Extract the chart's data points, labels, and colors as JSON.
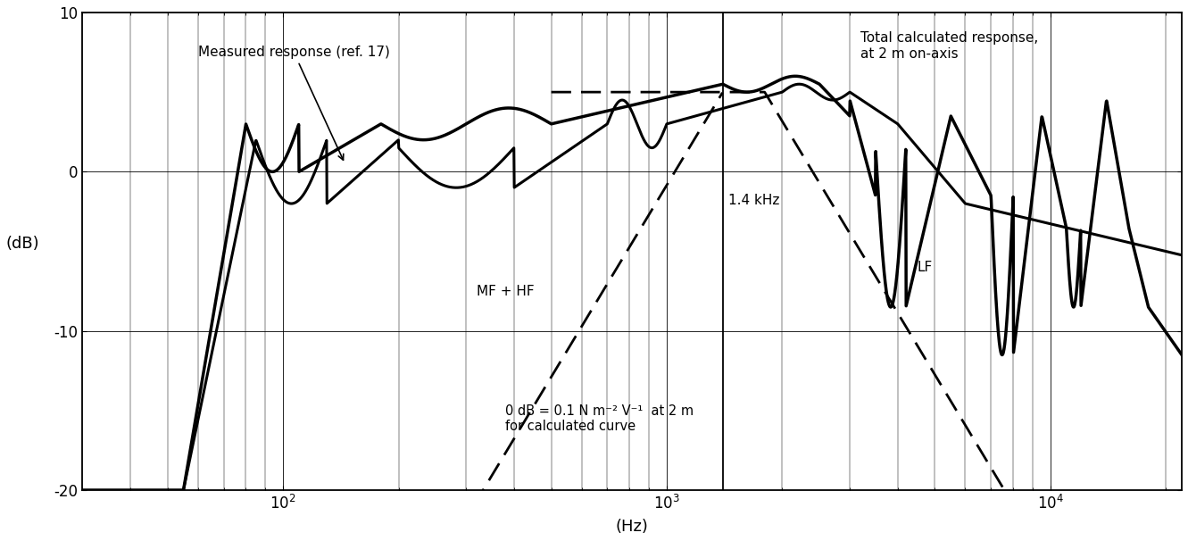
{
  "xlabel": "(Hz)",
  "ylabel": "(dB)",
  "xlim": [
    30,
    22000
  ],
  "ylim": [
    -20,
    10
  ],
  "yticks": [
    -20,
    -10,
    0,
    10
  ],
  "annotation_measured": "Measured response (ref. 17)",
  "annotation_total": "Total calculated response,\nat 2 m on-axis",
  "annotation_mf_hf": "MF + HF",
  "annotation_lf": "LF",
  "annotation_1k4": "1.4 kHz",
  "annotation_0db": "0 dB = 0.1 N m⁻² V⁻¹  at 2 m\nfor calculated curve",
  "line_color": "black",
  "background_color": "white"
}
